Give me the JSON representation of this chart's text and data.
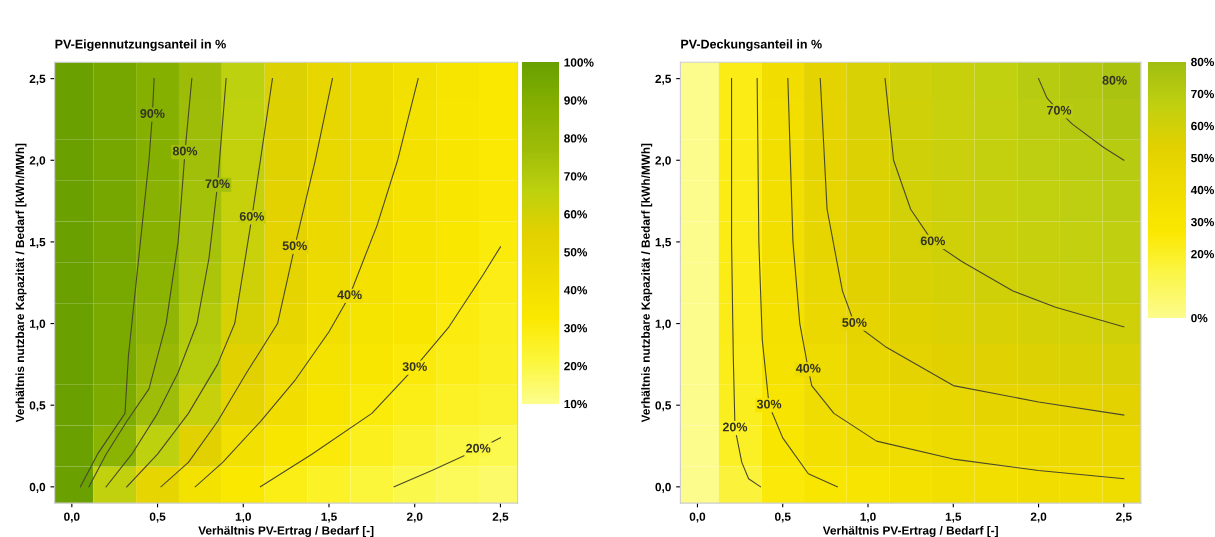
{
  "chart_data": [
    {
      "type": "heatmap",
      "title": "PV-Eigennutzungsanteil in %",
      "xlabel": "Verhältnis PV-Ertrag / Bedarf [-]",
      "ylabel": "Verhältnis nutzbare Kapazität / Bedarf [kWh/MWh]",
      "x": [
        0,
        0.25,
        0.5,
        0.75,
        1.0,
        1.25,
        1.5,
        1.75,
        2.0,
        2.25,
        2.5
      ],
      "y": [
        2.5,
        2.25,
        2.0,
        1.75,
        1.5,
        1.25,
        1.0,
        0.75,
        0.5,
        0.25,
        0
      ],
      "cells": [
        [
          99,
          95,
          89,
          77.5,
          66,
          57,
          50,
          45,
          40,
          36,
          33
        ],
        [
          99,
          95,
          89,
          77,
          65.5,
          56.5,
          49.5,
          44.5,
          39.5,
          35.5,
          32.5
        ],
        [
          99,
          95,
          88.5,
          76,
          64.5,
          55.5,
          48.5,
          43.5,
          39,
          35,
          32
        ],
        [
          99,
          95,
          88,
          75,
          63.5,
          54.5,
          47.5,
          42.5,
          38,
          34.5,
          31.5
        ],
        [
          99,
          95,
          87.5,
          74,
          63,
          53.5,
          46.5,
          41.5,
          37,
          33.5,
          30.5
        ],
        [
          99,
          94,
          86,
          72.5,
          61,
          52,
          43,
          39,
          35,
          31.5,
          28.5
        ],
        [
          99,
          93,
          83.5,
          70,
          58.5,
          50,
          41,
          37.5,
          34,
          30,
          27
        ],
        [
          99,
          93,
          80,
          68.5,
          55,
          46,
          38.5,
          35,
          30.8,
          28.5,
          26
        ],
        [
          99,
          92,
          77,
          63.5,
          51.5,
          41.5,
          36,
          30.5,
          28,
          25.5,
          23.5
        ],
        [
          99,
          86,
          66,
          55,
          40,
          34,
          31,
          27,
          23.5,
          20.5,
          18.5
        ],
        [
          99,
          65,
          51,
          39.5,
          33,
          28,
          25,
          21.5,
          19,
          17,
          15
        ]
      ],
      "clim": [
        10,
        100
      ],
      "cticks": [
        {
          "value": 10,
          "label": "10%"
        },
        {
          "value": 20,
          "label": "20%"
        },
        {
          "value": 30,
          "label": "30%"
        },
        {
          "value": 40,
          "label": "40%"
        },
        {
          "value": 50,
          "label": "50%"
        },
        {
          "value": 60,
          "label": "60%"
        },
        {
          "value": 70,
          "label": "70%"
        },
        {
          "value": 80,
          "label": "80%"
        },
        {
          "value": 90,
          "label": "90%"
        },
        {
          "value": 100,
          "label": "100%"
        }
      ],
      "colors": [
        "#fdfd8c",
        "#fbf63a",
        "#fbe800",
        "#eedc00",
        "#e2d100",
        "#bdd10e",
        "#9dbc08",
        "#86b000",
        "#68a000"
      ],
      "series": [
        {
          "type": "line",
          "color": "#4a4a2a",
          "x": [
            0.05,
            0.15,
            0.31,
            0.33,
            0.38,
            0.45,
            0.47,
            0.48
          ],
          "values": [
            0,
            0.2,
            0.45,
            0.8,
            1.3,
            2.0,
            2.28,
            2.5
          ]
        },
        {
          "type": "line",
          "color": "#4a4a2a",
          "x": [
            0.1,
            0.2,
            0.32,
            0.45,
            0.55,
            0.62,
            0.66,
            0.7
          ],
          "values": [
            0,
            0.2,
            0.4,
            0.6,
            1.0,
            1.5,
            2.05,
            2.5
          ]
        },
        {
          "type": "line",
          "color": "#4a4a2a",
          "x": [
            0.2,
            0.35,
            0.5,
            0.62,
            0.73,
            0.8,
            0.85,
            0.9
          ],
          "values": [
            0,
            0.2,
            0.45,
            0.7,
            1.0,
            1.4,
            1.85,
            2.5
          ]
        },
        {
          "type": "line",
          "color": "#4a4a2a",
          "x": [
            0.32,
            0.5,
            0.68,
            0.85,
            0.95,
            1.05,
            1.1,
            1.17
          ],
          "values": [
            0,
            0.2,
            0.45,
            0.75,
            1.0,
            1.65,
            2.0,
            2.5
          ]
        },
        {
          "type": "line",
          "color": "#4a4a2a",
          "x": [
            0.52,
            0.68,
            0.85,
            1.02,
            1.2,
            1.3,
            1.42,
            1.52
          ],
          "values": [
            0,
            0.15,
            0.4,
            0.7,
            1.0,
            1.47,
            2.0,
            2.5
          ]
        },
        {
          "type": "line",
          "color": "#4a4a2a",
          "x": [
            0.72,
            0.88,
            1.1,
            1.3,
            1.5,
            1.62,
            1.78,
            1.9,
            2.02
          ],
          "values": [
            0,
            0.15,
            0.4,
            0.65,
            0.95,
            1.17,
            1.6,
            2.0,
            2.5
          ]
        },
        {
          "type": "line",
          "color": "#4a4a2a",
          "x": [
            1.1,
            1.4,
            1.75,
            2.0,
            2.2,
            2.4,
            2.5
          ],
          "values": [
            0,
            0.2,
            0.45,
            0.73,
            0.98,
            1.3,
            1.47
          ]
        },
        {
          "type": "line",
          "color": "#4a4a2a",
          "x": [
            1.88,
            2.1,
            2.37,
            2.5
          ],
          "values": [
            0,
            0.1,
            0.23,
            0.3
          ]
        }
      ],
      "xlim": [
        -0.1,
        2.6
      ],
      "ylim": [
        -0.1,
        2.6
      ],
      "xticks": [
        {
          "value": 0,
          "label": "0,0"
        },
        {
          "value": 0.5,
          "label": "0,5"
        },
        {
          "value": 1.0,
          "label": "1,0"
        },
        {
          "value": 1.5,
          "label": "1,5"
        },
        {
          "value": 2.0,
          "label": "2,0"
        },
        {
          "value": 2.5,
          "label": "2,5"
        }
      ],
      "yticks": [
        {
          "value": 0,
          "label": "0,0"
        },
        {
          "value": 0.5,
          "label": "0,5"
        },
        {
          "value": 1.0,
          "label": "1,0"
        },
        {
          "value": 1.5,
          "label": "1,5"
        },
        {
          "value": 2.0,
          "label": "2,0"
        },
        {
          "value": 2.5,
          "label": "2,5"
        }
      ],
      "grid": false,
      "annotations": [
        {
          "text": "90%",
          "x": 0.47,
          "y": 2.28
        },
        {
          "text": "80%",
          "x": 0.66,
          "y": 2.05
        },
        {
          "text": "70%",
          "x": 0.85,
          "y": 1.85
        },
        {
          "text": "60%",
          "x": 1.05,
          "y": 1.65
        },
        {
          "text": "50%",
          "x": 1.3,
          "y": 1.47
        },
        {
          "text": "40%",
          "x": 1.62,
          "y": 1.17
        },
        {
          "text": "30%",
          "x": 2.0,
          "y": 0.73
        },
        {
          "text": "20%",
          "x": 2.37,
          "y": 0.23
        }
      ]
    },
    {
      "type": "heatmap",
      "title": "PV-Deckungsanteil in %",
      "xlabel": "Verhältnis PV-Ertrag / Bedarf [-]",
      "ylabel": "Verhältnis nutzbare Kapazität / Bedarf [kWh/MWh]",
      "x": [
        0,
        0.25,
        0.5,
        0.75,
        1.0,
        1.25,
        1.5,
        1.75,
        2.0,
        2.25,
        2.5
      ],
      "y": [
        2.5,
        2.25,
        2.0,
        1.75,
        1.5,
        1.25,
        1.0,
        0.75,
        0.5,
        0.25,
        0
      ],
      "cells": [
        [
          0,
          23,
          38.5,
          51,
          57.5,
          61,
          63.5,
          66,
          70,
          73,
          76
        ],
        [
          0,
          23,
          38,
          50.5,
          57,
          60.5,
          63,
          65.5,
          68.5,
          71.5,
          74
        ],
        [
          0,
          23,
          38,
          50,
          56,
          60,
          62.5,
          65,
          67.5,
          69,
          70
        ],
        [
          0,
          23,
          37.5,
          49,
          55,
          59.5,
          62,
          64,
          66,
          67.5,
          68.5
        ],
        [
          0,
          23,
          37,
          48.5,
          54,
          58,
          60.5,
          62.5,
          64,
          65.5,
          66.5
        ],
        [
          0,
          23,
          36.5,
          47,
          53,
          56.5,
          58.5,
          60.5,
          62,
          63,
          64
        ],
        [
          0,
          22.5,
          35.5,
          45,
          50.5,
          54,
          56,
          57.5,
          58.5,
          59.5,
          60
        ],
        [
          0,
          22,
          34.5,
          42,
          47.5,
          51,
          53,
          54.5,
          55.5,
          56.5,
          57
        ],
        [
          0,
          21.5,
          32,
          41,
          43,
          46,
          48,
          49.5,
          50.5,
          51.5,
          52
        ],
        [
          0,
          20,
          29,
          36,
          40,
          41.5,
          42.5,
          43.5,
          44.5,
          45,
          45.5
        ],
        [
          0,
          16,
          25,
          29,
          32,
          35,
          37,
          38,
          38.5,
          39,
          39.5
        ]
      ],
      "clim": [
        0,
        80
      ],
      "cticks": [
        {
          "value": 0,
          "label": "0%"
        },
        {
          "value": 20,
          "label": "20%"
        },
        {
          "value": 30,
          "label": "30%"
        },
        {
          "value": 40,
          "label": "40%"
        },
        {
          "value": 50,
          "label": "50%"
        },
        {
          "value": 60,
          "label": "60%"
        },
        {
          "value": 70,
          "label": "70%"
        },
        {
          "value": 80,
          "label": "80%"
        }
      ],
      "colors": [
        "#fcfc8c",
        "#fbf64a",
        "#fbe800",
        "#f0dd00",
        "#e2d100",
        "#c0d010",
        "#a0be10"
      ],
      "series": [
        {
          "type": "line",
          "color": "#4a4a2a",
          "x": [
            0.2,
            0.2,
            0.21,
            0.22,
            0.26,
            0.3,
            0.37
          ],
          "values": [
            2.5,
            1.5,
            0.8,
            0.36,
            0.15,
            0.05,
            0
          ]
        },
        {
          "type": "line",
          "color": "#4a4a2a",
          "x": [
            0.35,
            0.36,
            0.38,
            0.42,
            0.5,
            0.65,
            0.82
          ],
          "values": [
            2.5,
            1.5,
            0.9,
            0.5,
            0.3,
            0.08,
            0
          ]
        },
        {
          "type": "line",
          "color": "#4a4a2a",
          "x": [
            0.53,
            0.56,
            0.6,
            0.65,
            0.67,
            0.8,
            1.05,
            1.5,
            2.0,
            2.5
          ],
          "values": [
            2.5,
            1.5,
            1.0,
            0.72,
            0.62,
            0.45,
            0.28,
            0.17,
            0.1,
            0.05
          ]
        },
        {
          "type": "line",
          "color": "#4a4a2a",
          "x": [
            0.72,
            0.76,
            0.85,
            0.92,
            1.1,
            1.5,
            2.0,
            2.5
          ],
          "values": [
            2.5,
            1.7,
            1.2,
            1.0,
            0.86,
            0.62,
            0.52,
            0.44
          ]
        },
        {
          "type": "line",
          "color": "#4a4a2a",
          "x": [
            1.1,
            1.15,
            1.25,
            1.38,
            1.55,
            1.85,
            2.1,
            2.5
          ],
          "values": [
            2.5,
            2.0,
            1.7,
            1.5,
            1.38,
            1.2,
            1.1,
            0.98
          ]
        },
        {
          "type": "line",
          "color": "#4a4a2a",
          "x": [
            2.0,
            2.05,
            2.12,
            2.2,
            2.38,
            2.5
          ],
          "values": [
            2.5,
            2.38,
            2.3,
            2.22,
            2.08,
            2.0
          ]
        }
      ],
      "xlim": [
        -0.1,
        2.6
      ],
      "ylim": [
        -0.1,
        2.6
      ],
      "xticks": [
        {
          "value": 0,
          "label": "0,0"
        },
        {
          "value": 0.5,
          "label": "0,5"
        },
        {
          "value": 1.0,
          "label": "1,0"
        },
        {
          "value": 1.5,
          "label": "1,5"
        },
        {
          "value": 2.0,
          "label": "2,0"
        },
        {
          "value": 2.5,
          "label": "2,5"
        }
      ],
      "yticks": [
        {
          "value": 0,
          "label": "0,0"
        },
        {
          "value": 0.5,
          "label": "0,5"
        },
        {
          "value": 1.0,
          "label": "1,0"
        },
        {
          "value": 1.5,
          "label": "1,5"
        },
        {
          "value": 2.0,
          "label": "2,0"
        },
        {
          "value": 2.5,
          "label": "2,5"
        }
      ],
      "grid": false,
      "annotations": [
        "80%",
        {
          "text": "70%",
          "x": 2.12,
          "y": 2.3
        },
        {
          "text": "60%",
          "x": 1.38,
          "y": 1.5
        },
        {
          "text": "50%",
          "x": 0.92,
          "y": 1.0
        },
        {
          "text": "40%",
          "x": 0.65,
          "y": 0.72
        },
        {
          "text": "30%",
          "x": 0.42,
          "y": 0.5
        },
        {
          "text": "20%",
          "x": 0.22,
          "y": 0.36
        }
      ]
    }
  ]
}
